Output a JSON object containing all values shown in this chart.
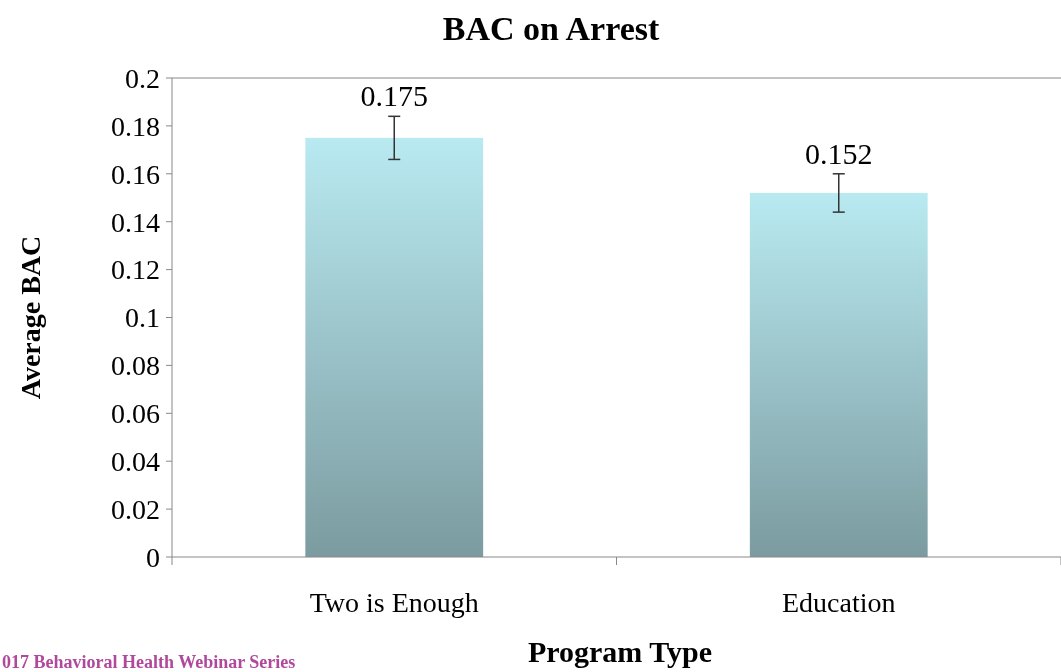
{
  "chart_data": {
    "type": "bar",
    "title": "BAC on Arrest",
    "xlabel": "Program Type",
    "ylabel": "Average BAC",
    "categories": [
      "Two is Enough",
      "Education"
    ],
    "values": [
      0.175,
      0.152
    ],
    "errors": [
      0.009,
      0.008
    ],
    "color": "#a9d6dc",
    "data_labels": true,
    "ylim": [
      0,
      0.2
    ],
    "yticks": [
      0,
      0.02,
      0.04,
      0.06,
      0.08,
      0.1,
      0.12,
      0.14,
      0.16,
      0.18,
      0.2
    ],
    "grid": false,
    "annotations": [
      "017 Behavioral Health Webinar Series"
    ]
  }
}
